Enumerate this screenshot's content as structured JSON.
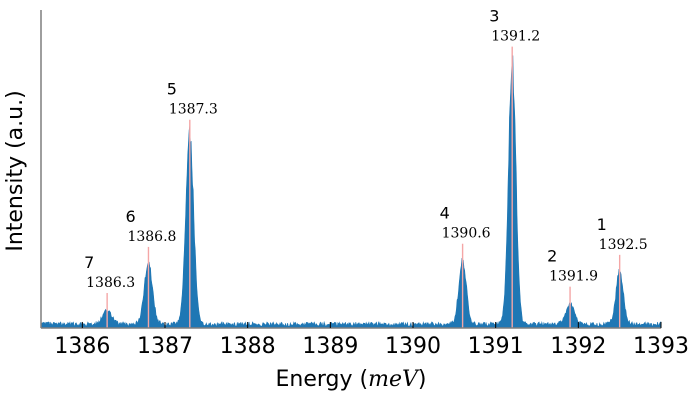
{
  "chart_data": {
    "type": "area",
    "xlabel": "Energy",
    "xlabel_unit": "meV",
    "ylabel": "Intensity (a.u.)",
    "xlim": [
      1385.5,
      1393.0
    ],
    "ylim": [
      0,
      1.0
    ],
    "xticks": [
      "1386",
      "1387",
      "1388",
      "1389",
      "1390",
      "1391",
      "1392",
      "1393"
    ],
    "grid": false,
    "series_color": "#1f77b4",
    "marker_color": "#f4a6a6",
    "baseline": 0.012,
    "peaks": [
      {
        "id": "7",
        "energy": 1386.3,
        "label": "1386.3",
        "height": 0.045,
        "width": 0.055
      },
      {
        "id": "6",
        "energy": 1386.8,
        "label": "1386.8",
        "height": 0.19,
        "width": 0.05
      },
      {
        "id": "5",
        "energy": 1387.3,
        "label": "1387.3",
        "height": 0.59,
        "width": 0.048
      },
      {
        "id": "4",
        "energy": 1390.6,
        "label": "1390.6",
        "height": 0.2,
        "width": 0.045
      },
      {
        "id": "3",
        "energy": 1391.2,
        "label": "1391.2",
        "height": 0.82,
        "width": 0.045
      },
      {
        "id": "2",
        "energy": 1391.9,
        "label": "1391.9",
        "height": 0.065,
        "width": 0.05
      },
      {
        "id": "1",
        "energy": 1392.5,
        "label": "1392.5",
        "height": 0.165,
        "width": 0.045
      }
    ]
  }
}
